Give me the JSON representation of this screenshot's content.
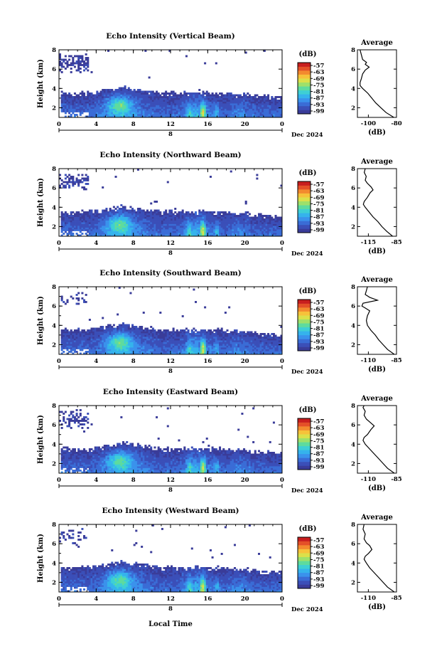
{
  "colors": {
    "colormap": [
      "#3a3c99",
      "#3b4fb8",
      "#3a6cd6",
      "#3a92ec",
      "#35b3ec",
      "#3ecfd4",
      "#5edb9e",
      "#9ee06a",
      "#dbe04a",
      "#f6c23a",
      "#f38a2e",
      "#e45028",
      "#c81e1e"
    ]
  },
  "figure": {
    "xlabel": "Local Time",
    "month_label": "Dec 2024",
    "date_label": "8",
    "colorbar_unit": "(dB)",
    "colorbar_ticks": [
      "-57",
      "-63",
      "-69",
      "-75",
      "-81",
      "-87",
      "-93",
      "-99"
    ],
    "avg_title": "Average",
    "avg_xlabel": "(dB)",
    "ylabel": "Height (km)"
  },
  "chart_data": [
    {
      "type": "heatmap",
      "title": "Echo Intensity (Vertical Beam)",
      "ylabel": "Height (km)",
      "x_ticks": [
        "0",
        "4",
        "8",
        "12",
        "16",
        "20",
        "0"
      ],
      "y_ticks": [
        "2",
        "4",
        "6",
        "8"
      ],
      "xlim": [
        0,
        24
      ],
      "ylim": [
        1,
        8
      ],
      "colorbar": {
        "unit": "(dB)",
        "ticks": [
          -57,
          -63,
          -69,
          -75,
          -81,
          -87,
          -93,
          -99
        ]
      },
      "average": {
        "title": "Average",
        "xlabel": "(dB)",
        "xlim": [
          -110,
          -80
        ],
        "x_tick_labels": [
          "-100",
          "-80"
        ],
        "y_ticks": [
          "2",
          "4",
          "6",
          "8"
        ],
        "profile": [
          [
            1.0,
            -82
          ],
          [
            1.5,
            -88
          ],
          [
            2.0,
            -92
          ],
          [
            2.5,
            -96
          ],
          [
            3.0,
            -99
          ],
          [
            3.5,
            -102
          ],
          [
            4.0,
            -106
          ],
          [
            4.3,
            -108
          ],
          [
            4.6,
            -108
          ],
          [
            5.0,
            -107
          ],
          [
            5.5,
            -106
          ],
          [
            5.9,
            -104
          ],
          [
            6.2,
            -101
          ],
          [
            6.5,
            -104
          ],
          [
            6.7,
            -103
          ],
          [
            7.0,
            -106
          ],
          [
            7.5,
            -107
          ],
          [
            8.0,
            -108
          ]
        ]
      }
    },
    {
      "type": "heatmap",
      "title": "Echo Intensity (Northward Beam)",
      "ylabel": "Height (km)",
      "x_ticks": [
        "0",
        "4",
        "8",
        "12",
        "16",
        "20",
        "0"
      ],
      "y_ticks": [
        "2",
        "4",
        "6",
        "8"
      ],
      "xlim": [
        0,
        24
      ],
      "ylim": [
        1,
        8
      ],
      "colorbar": {
        "unit": "(dB)",
        "ticks": [
          -57,
          -63,
          -69,
          -75,
          -81,
          -87,
          -93,
          -99
        ]
      },
      "average": {
        "title": "Average",
        "xlabel": "(dB)",
        "xlim": [
          -120,
          -80
        ],
        "x_tick_labels": [
          "-115",
          "-85"
        ],
        "y_ticks": [
          "2",
          "4",
          "6",
          "8"
        ],
        "profile": [
          [
            1.0,
            -84
          ],
          [
            1.5,
            -90
          ],
          [
            2.0,
            -95
          ],
          [
            2.5,
            -99
          ],
          [
            3.0,
            -104
          ],
          [
            3.5,
            -108
          ],
          [
            4.0,
            -112
          ],
          [
            4.3,
            -114
          ],
          [
            4.6,
            -113
          ],
          [
            5.0,
            -110
          ],
          [
            5.5,
            -107
          ],
          [
            5.8,
            -104
          ],
          [
            6.1,
            -106
          ],
          [
            6.5,
            -110
          ],
          [
            6.8,
            -112
          ],
          [
            7.2,
            -111
          ],
          [
            7.6,
            -113
          ],
          [
            8.0,
            -112
          ]
        ]
      }
    },
    {
      "type": "heatmap",
      "title": "Echo Intensity (Southward Beam)",
      "ylabel": "Height (km)",
      "x_ticks": [
        "0",
        "4",
        "8",
        "12",
        "16",
        "20",
        "0"
      ],
      "y_ticks": [
        "2",
        "4",
        "6",
        "8"
      ],
      "xlim": [
        0,
        24
      ],
      "ylim": [
        1,
        8
      ],
      "colorbar": {
        "unit": "(dB)",
        "ticks": [
          -57,
          -63,
          -69,
          -75,
          -81,
          -87,
          -93,
          -99
        ]
      },
      "average": {
        "title": "Average",
        "xlabel": "(dB)",
        "xlim": [
          -115,
          -80
        ],
        "x_tick_labels": [
          "-110",
          "-85"
        ],
        "y_ticks": [
          "2",
          "4",
          "6",
          "8"
        ],
        "profile": [
          [
            1.0,
            -82
          ],
          [
            1.5,
            -88
          ],
          [
            2.0,
            -92
          ],
          [
            2.5,
            -96
          ],
          [
            3.0,
            -99
          ],
          [
            3.5,
            -103
          ],
          [
            4.0,
            -106
          ],
          [
            4.5,
            -107
          ],
          [
            5.0,
            -106
          ],
          [
            5.5,
            -104
          ],
          [
            5.8,
            -108
          ],
          [
            6.0,
            -111
          ],
          [
            6.3,
            -110
          ],
          [
            6.6,
            -97
          ],
          [
            6.9,
            -104
          ],
          [
            7.2,
            -108
          ],
          [
            7.6,
            -107
          ],
          [
            8.0,
            -106
          ]
        ]
      }
    },
    {
      "type": "heatmap",
      "title": "Echo Intensity (Eastward Beam)",
      "ylabel": "Height (km)",
      "x_ticks": [
        "0",
        "4",
        "8",
        "12",
        "16",
        "20",
        "0"
      ],
      "y_ticks": [
        "2",
        "4",
        "6",
        "8"
      ],
      "xlim": [
        0,
        24
      ],
      "ylim": [
        1,
        8
      ],
      "colorbar": {
        "unit": "(dB)",
        "ticks": [
          -57,
          -63,
          -69,
          -75,
          -81,
          -87,
          -93,
          -99
        ]
      },
      "average": {
        "title": "Average",
        "xlabel": "(dB)",
        "xlim": [
          -115,
          -80
        ],
        "x_tick_labels": [
          "-110",
          "-85"
        ],
        "y_ticks": [
          "2",
          "4",
          "6",
          "8"
        ],
        "profile": [
          [
            1.0,
            -82
          ],
          [
            1.5,
            -88
          ],
          [
            2.0,
            -92
          ],
          [
            2.5,
            -96
          ],
          [
            3.0,
            -100
          ],
          [
            3.5,
            -104
          ],
          [
            4.0,
            -108
          ],
          [
            4.4,
            -110
          ],
          [
            4.7,
            -109
          ],
          [
            5.0,
            -106
          ],
          [
            5.5,
            -103
          ],
          [
            5.9,
            -100
          ],
          [
            6.2,
            -103
          ],
          [
            6.6,
            -107
          ],
          [
            7.0,
            -109
          ],
          [
            7.4,
            -108
          ],
          [
            7.8,
            -110
          ],
          [
            8.0,
            -109
          ]
        ]
      }
    },
    {
      "type": "heatmap",
      "title": "Echo Intensity (Westward Beam)",
      "ylabel": "Height (km)",
      "x_ticks": [
        "0",
        "4",
        "8",
        "12",
        "16",
        "20",
        "0"
      ],
      "y_ticks": [
        "2",
        "4",
        "6",
        "8"
      ],
      "xlim": [
        0,
        24
      ],
      "ylim": [
        1,
        8
      ],
      "colorbar": {
        "unit": "(dB)",
        "ticks": [
          -57,
          -63,
          -69,
          -75,
          -81,
          -87,
          -93,
          -99
        ]
      },
      "average": {
        "title": "Average",
        "xlabel": "(dB)",
        "xlim": [
          -115,
          -80
        ],
        "x_tick_labels": [
          "-110",
          "-85"
        ],
        "y_ticks": [
          "2",
          "4",
          "6",
          "8"
        ],
        "profile": [
          [
            1.0,
            -82
          ],
          [
            1.5,
            -88
          ],
          [
            2.0,
            -92
          ],
          [
            2.5,
            -96
          ],
          [
            3.0,
            -100
          ],
          [
            3.5,
            -104
          ],
          [
            4.0,
            -107
          ],
          [
            4.4,
            -109
          ],
          [
            4.7,
            -108
          ],
          [
            5.0,
            -105
          ],
          [
            5.4,
            -102
          ],
          [
            5.8,
            -104
          ],
          [
            6.1,
            -107
          ],
          [
            6.5,
            -109
          ],
          [
            7.0,
            -108
          ],
          [
            7.5,
            -110
          ],
          [
            8.0,
            -109
          ]
        ]
      }
    }
  ]
}
